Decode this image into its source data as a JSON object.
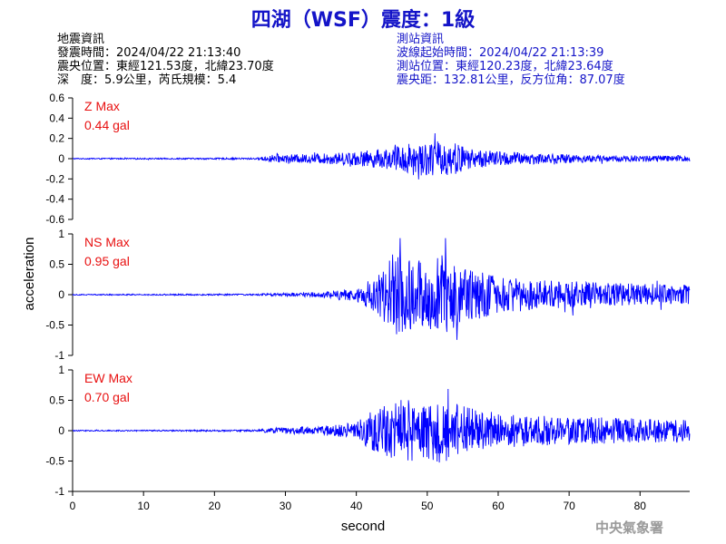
{
  "title": "四湖（WSF）震度：1級",
  "earthquake_info": {
    "heading": "地震資訊",
    "origin_time": "發震時間：2024/04/22 21:13:40",
    "epicenter": "震央位置：東經121.53度，北緯23.70度",
    "depth_magnitude": "深　度：5.9公里，芮氏規模：5.4"
  },
  "station_info": {
    "heading": "測站資訊",
    "wave_start": "波線起始時間：2024/04/22 21:13:39",
    "station_location": "測站位置：東經120.23度，北緯23.64度",
    "distance_azimuth": "震央距：132.81公里，反方位角：87.07度"
  },
  "footer": "中央氣象署",
  "colors": {
    "trace": "#0000ff",
    "label_red": "#e81010",
    "title_blue": "#1414c8",
    "axis": "#000000"
  },
  "chart_data": {
    "type": "line",
    "xlabel": "second",
    "ylabel": "acceleration",
    "xlim": [
      0,
      87
    ],
    "x_ticks": [
      "0",
      "10",
      "20",
      "30",
      "40",
      "50",
      "60",
      "70",
      "80"
    ],
    "panels": [
      {
        "name": "Z",
        "max_label": "Z Max",
        "max_value": "0.44 gal",
        "peak": 0.44,
        "ylim": [
          -0.6,
          0.6
        ],
        "y_ticks": [
          "0.6",
          "0.4",
          "0.2",
          "0",
          "-0.2",
          "-0.4",
          "-0.6"
        ],
        "envelope": {
          "t": [
            0,
            26,
            28,
            35,
            40,
            45,
            48,
            50,
            52,
            54,
            56,
            60,
            65,
            70,
            75,
            80,
            87
          ],
          "a": [
            0.01,
            0.015,
            0.07,
            0.09,
            0.13,
            0.2,
            0.32,
            0.3,
            0.33,
            0.3,
            0.18,
            0.14,
            0.1,
            0.08,
            0.06,
            0.06,
            0.06
          ]
        }
      },
      {
        "name": "NS",
        "max_label": "NS Max",
        "max_value": "0.95 gal",
        "peak": 0.95,
        "ylim": [
          -1,
          1
        ],
        "y_ticks": [
          "1",
          "0.5",
          "0",
          "-0.5",
          "-1"
        ],
        "envelope": {
          "t": [
            0,
            26,
            30,
            35,
            40,
            43,
            45,
            48,
            50,
            52,
            54,
            56,
            60,
            65,
            70,
            75,
            80,
            87
          ],
          "a": [
            0.01,
            0.015,
            0.03,
            0.05,
            0.12,
            0.35,
            0.75,
            0.65,
            0.6,
            0.8,
            0.6,
            0.5,
            0.35,
            0.28,
            0.25,
            0.22,
            0.2,
            0.18
          ]
        }
      },
      {
        "name": "EW",
        "max_label": "EW Max",
        "max_value": "0.70 gal",
        "peak": 0.7,
        "ylim": [
          -1,
          1
        ],
        "y_ticks": [
          "1",
          "0.5",
          "0",
          "-0.5",
          "-1"
        ],
        "envelope": {
          "t": [
            0,
            26,
            28,
            35,
            40,
            43,
            46,
            48,
            50,
            52,
            54,
            56,
            60,
            65,
            70,
            75,
            80,
            87
          ],
          "a": [
            0.01,
            0.015,
            0.05,
            0.08,
            0.15,
            0.45,
            0.6,
            0.55,
            0.55,
            0.6,
            0.5,
            0.42,
            0.32,
            0.28,
            0.26,
            0.24,
            0.22,
            0.2
          ]
        }
      }
    ]
  }
}
